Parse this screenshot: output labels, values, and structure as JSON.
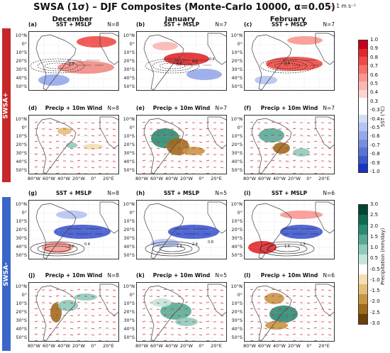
{
  "title": "SWSA (1σ) – DJF Composites (Monte-Carlo 10000, α=0.05)",
  "wind_key": "1 m s⁻¹",
  "columns": [
    "December",
    "January",
    "February"
  ],
  "groups": [
    {
      "label": "SWSA+",
      "color": "#c62828"
    },
    {
      "label": "SWSA-",
      "color": "#3a66c9"
    }
  ],
  "panels": [
    {
      "letter": "(a)",
      "type": "SST + MSLP",
      "n": "N=8"
    },
    {
      "letter": "(b)",
      "type": "SST + MSLP",
      "n": "N=7"
    },
    {
      "letter": "(c)",
      "type": "SST + MSLP",
      "n": "N=7"
    },
    {
      "letter": "(d)",
      "type": "Precip + 10m Wind",
      "n": "N=8"
    },
    {
      "letter": "(e)",
      "type": "Precip + 10m Wind",
      "n": "N=7"
    },
    {
      "letter": "(f)",
      "type": "Precip + 10m Wind",
      "n": "N=7"
    },
    {
      "letter": "(g)",
      "type": "SST + MSLP",
      "n": "N=8"
    },
    {
      "letter": "(h)",
      "type": "SST + MSLP",
      "n": "N=5"
    },
    {
      "letter": "(i)",
      "type": "SST + MSLP",
      "n": "N=6"
    },
    {
      "letter": "(j)",
      "type": "Precip + 10m Wind",
      "n": "N=8"
    },
    {
      "letter": "(k)",
      "type": "Precip + 10m Wind",
      "n": "N=5"
    },
    {
      "letter": "(l)",
      "type": "Precip + 10m Wind",
      "n": "N=6"
    }
  ],
  "lat_labels": [
    "10°N",
    "0°",
    "10°S",
    "20°S",
    "30°S",
    "40°S",
    "50°S"
  ],
  "lon_labels": [
    "80°W",
    "60°W",
    "40°W",
    "20°W",
    "0°",
    "20°E"
  ],
  "sst_colorbar": {
    "label": "SST (°C)",
    "ticks": [
      "1.0",
      "0.9",
      "0.8",
      "0.7",
      "0.6",
      "0.5",
      "0.4",
      "0.3",
      "-0.3",
      "-0.4",
      "-0.5",
      "-0.6",
      "-0.7",
      "-0.8",
      "-0.9",
      "-1.0"
    ],
    "colors": [
      "#c8001e",
      "#e0282b",
      "#ef4a45",
      "#f6716a",
      "#fa9790",
      "#fcb7b1",
      "#fdd4d0",
      "#ffffff",
      "#ffffff",
      "#d3dcf7",
      "#b5c4f1",
      "#95a9ea",
      "#778ee1",
      "#5a73d8",
      "#3d57ce",
      "#1a33c2"
    ]
  },
  "precip_colorbar": {
    "label": "Precipitation (mm/day)",
    "ticks": [
      "3.0",
      "2.5",
      "2.0",
      "1.5",
      "1.0",
      "0.5",
      "-0.5",
      "-1.0",
      "-1.5",
      "-2.0",
      "-2.5",
      "-3.0"
    ],
    "colors": [
      "#00452f",
      "#0e6b52",
      "#2a8a72",
      "#58aa96",
      "#8ecbbd",
      "#c2e6de",
      "#ffffff",
      "#f3dfb3",
      "#e3bf7b",
      "#c89545",
      "#9e6a1c",
      "#6b3f05"
    ]
  },
  "contour_labels": {
    "a": [
      "0.8"
    ],
    "b": [
      "0.6",
      "0.6",
      "-0.6"
    ],
    "c": [
      "0.4"
    ],
    "g": [
      "0.6",
      "0.4"
    ],
    "h": [
      "1.6",
      "2.4",
      "0.8"
    ],
    "i": [
      "1.6",
      "1.5"
    ]
  }
}
